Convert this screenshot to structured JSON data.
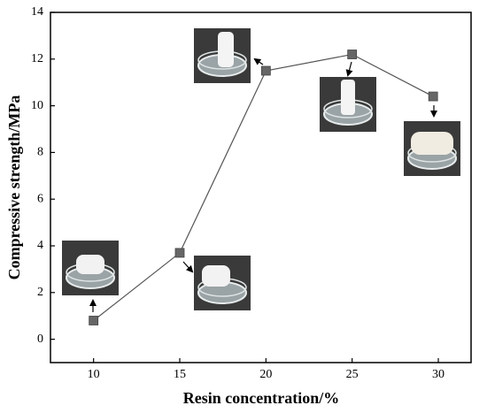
{
  "chart_data": {
    "type": "line",
    "xlabel": "Resin concentration/%",
    "ylabel": "Compressive strength/MPa",
    "x": [
      10,
      15,
      20,
      25,
      29.7
    ],
    "series": [
      {
        "color": "#666666",
        "values": [
          0.8,
          3.7,
          11.5,
          12.2,
          10.4
        ]
      }
    ],
    "xlim": [
      7.5,
      31.9
    ],
    "xticks": [
      10,
      15,
      20,
      25,
      30
    ],
    "ylim": [
      -1,
      14
    ],
    "yticks": [
      0,
      2,
      4,
      6,
      8,
      10,
      12,
      14
    ]
  }
}
